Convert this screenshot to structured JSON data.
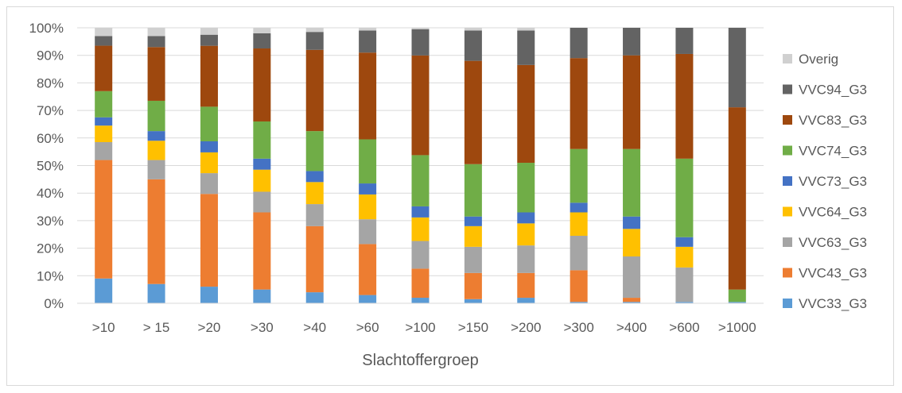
{
  "chart_data": {
    "type": "bar",
    "stacked": true,
    "percent": true,
    "title": "",
    "xlabel": "Slachtoffergroep",
    "ylabel": "",
    "ylim": [
      0,
      100
    ],
    "yticks": [
      "0%",
      "10%",
      "20%",
      "30%",
      "40%",
      "50%",
      "60%",
      "70%",
      "80%",
      "90%",
      "100%"
    ],
    "categories": [
      ">10",
      "> 15",
      ">20",
      ">30",
      ">40",
      ">60",
      ">100",
      ">150",
      ">200",
      ">300",
      ">400",
      ">600",
      ">1000"
    ],
    "legend_position": "right",
    "grid": true,
    "series": [
      {
        "name": "VVC33_G3",
        "color": "#5b9bd5",
        "values": [
          9,
          7,
          6,
          5,
          4,
          3,
          2,
          1.5,
          2,
          0.5,
          0.5,
          0.5,
          0.5
        ]
      },
      {
        "name": "VVC43_G3",
        "color": "#ed7d31",
        "values": [
          43,
          38,
          33.5,
          28,
          24,
          18.5,
          10.5,
          9.5,
          9,
          11.5,
          1.5,
          0,
          0
        ]
      },
      {
        "name": "VVC63_G3",
        "color": "#a5a5a5",
        "values": [
          6.5,
          7,
          7.5,
          7.5,
          8,
          9,
          10,
          9.5,
          10,
          12.5,
          15,
          12.5,
          0
        ]
      },
      {
        "name": "VVC64_G3",
        "color": "#ffc000",
        "values": [
          6,
          7,
          7.5,
          8,
          8,
          9,
          8.5,
          7.5,
          8,
          8.5,
          10,
          7.5,
          0
        ]
      },
      {
        "name": "VVC73_G3",
        "color": "#4472c4",
        "values": [
          3,
          3.5,
          4,
          4,
          4,
          4,
          4,
          3.5,
          4,
          3.5,
          4.5,
          3.5,
          0
        ]
      },
      {
        "name": "VVC74_G3",
        "color": "#70ad47",
        "values": [
          9.5,
          11,
          12.5,
          13.5,
          14.5,
          16,
          18.5,
          19,
          18,
          19.5,
          24.5,
          28.5,
          4.5
        ]
      },
      {
        "name": "VVC83_G3",
        "color": "#9e480e",
        "values": [
          16.5,
          19.5,
          22,
          26.5,
          29.5,
          31.5,
          36,
          37.5,
          35.5,
          33,
          34,
          38,
          66.5
        ]
      },
      {
        "name": "VVC94_G3",
        "color": "#636363",
        "values": [
          3.5,
          4,
          4,
          5.5,
          6.5,
          8,
          9.5,
          11,
          12.5,
          11,
          10,
          9.5,
          29
        ]
      },
      {
        "name": "Overig",
        "color": "#d0d0d0",
        "values": [
          3,
          3,
          2.5,
          2,
          1.5,
          1,
          0.5,
          1,
          1,
          0,
          0,
          0,
          0
        ]
      }
    ]
  }
}
